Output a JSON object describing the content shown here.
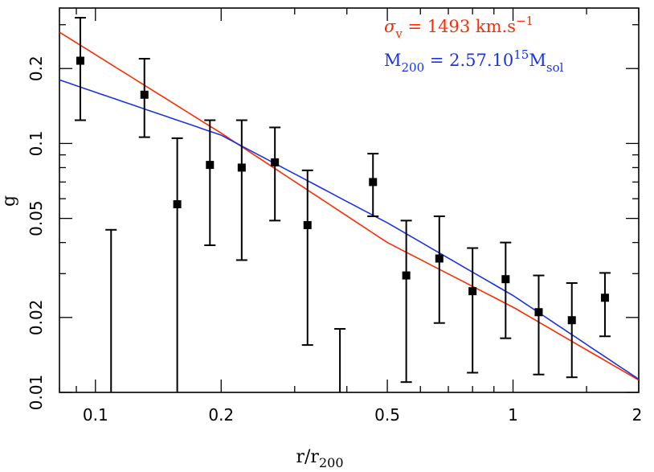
{
  "chart_data": {
    "type": "scatter",
    "xlabel": "r/r",
    "xlabel_sub": "200",
    "ylabel": "g",
    "x_scale": "log",
    "y_scale": "log",
    "xlim": [
      0.082,
      2.0
    ],
    "ylim": [
      0.01,
      0.35
    ],
    "x_ticks": [
      {
        "value": 0.1,
        "label": "0.1"
      },
      {
        "value": 0.2,
        "label": "0.2"
      },
      {
        "value": 0.5,
        "label": "0.5"
      },
      {
        "value": 1,
        "label": "1"
      },
      {
        "value": 2,
        "label": "2"
      }
    ],
    "y_ticks": [
      {
        "value": 0.01,
        "label": "0.01"
      },
      {
        "value": 0.02,
        "label": "0.02"
      },
      {
        "value": 0.05,
        "label": "0.05"
      },
      {
        "value": 0.1,
        "label": "0.1"
      },
      {
        "value": 0.2,
        "label": "0.2"
      }
    ],
    "points": [
      {
        "x": 0.092,
        "y": 0.215,
        "lo": 0.124,
        "hi": 0.32
      },
      {
        "x": 0.131,
        "y": 0.157,
        "lo": 0.106,
        "hi": 0.219
      },
      {
        "x": 0.157,
        "y": 0.057,
        "lo": 0.01,
        "hi": 0.105
      },
      {
        "x": 0.188,
        "y": 0.082,
        "lo": 0.039,
        "hi": 0.124
      },
      {
        "x": 0.224,
        "y": 0.08,
        "lo": 0.034,
        "hi": 0.124
      },
      {
        "x": 0.269,
        "y": 0.084,
        "lo": 0.049,
        "hi": 0.116
      },
      {
        "x": 0.322,
        "y": 0.047,
        "lo": 0.0155,
        "hi": 0.078
      },
      {
        "x": 0.462,
        "y": 0.07,
        "lo": 0.051,
        "hi": 0.091
      },
      {
        "x": 0.555,
        "y": 0.0295,
        "lo": 0.011,
        "hi": 0.049
      },
      {
        "x": 0.666,
        "y": 0.0345,
        "lo": 0.019,
        "hi": 0.051
      },
      {
        "x": 0.8,
        "y": 0.0255,
        "lo": 0.012,
        "hi": 0.038
      },
      {
        "x": 0.96,
        "y": 0.0285,
        "lo": 0.0165,
        "hi": 0.04
      },
      {
        "x": 1.152,
        "y": 0.021,
        "lo": 0.0118,
        "hi": 0.0295
      },
      {
        "x": 1.383,
        "y": 0.0195,
        "lo": 0.0115,
        "hi": 0.0275
      },
      {
        "x": 1.66,
        "y": 0.024,
        "lo": 0.0168,
        "hi": 0.0302
      }
    ],
    "upper_limits": [
      {
        "x": 0.109,
        "lo": 0.01,
        "hi": 0.045
      },
      {
        "x": 0.385,
        "lo": 0.01,
        "hi": 0.018
      }
    ],
    "series": [
      {
        "name": "σv = 1493 km.s−1",
        "color": "#ff2a00",
        "x": [
          0.082,
          0.2,
          0.5,
          1.0,
          2.0
        ],
        "y": [
          0.28,
          0.11,
          0.04,
          0.022,
          0.0112
        ]
      },
      {
        "name": "M200 = 2.57.1015Msol",
        "color": "#1a33e6",
        "x": [
          0.082,
          0.2,
          0.5,
          1.0,
          2.0
        ],
        "y": [
          0.18,
          0.108,
          0.048,
          0.0245,
          0.0113
        ]
      }
    ],
    "legend": {
      "placement": "top-right",
      "items": [
        {
          "color": "#ff2a00",
          "parts": [
            {
              "t": "σ",
              "italic": true
            },
            {
              "t": "v",
              "sub": true
            },
            {
              "t": " = 1493 km.s"
            },
            {
              "t": "−1",
              "sup": true
            }
          ]
        },
        {
          "color": "#1a33e6",
          "parts": [
            {
              "t": "M"
            },
            {
              "t": "200",
              "sub": true
            },
            {
              "t": " = 2.57.10"
            },
            {
              "t": "15",
              "sup": true
            },
            {
              "t": "M"
            },
            {
              "t": "sol",
              "sub": true
            }
          ]
        }
      ]
    }
  }
}
